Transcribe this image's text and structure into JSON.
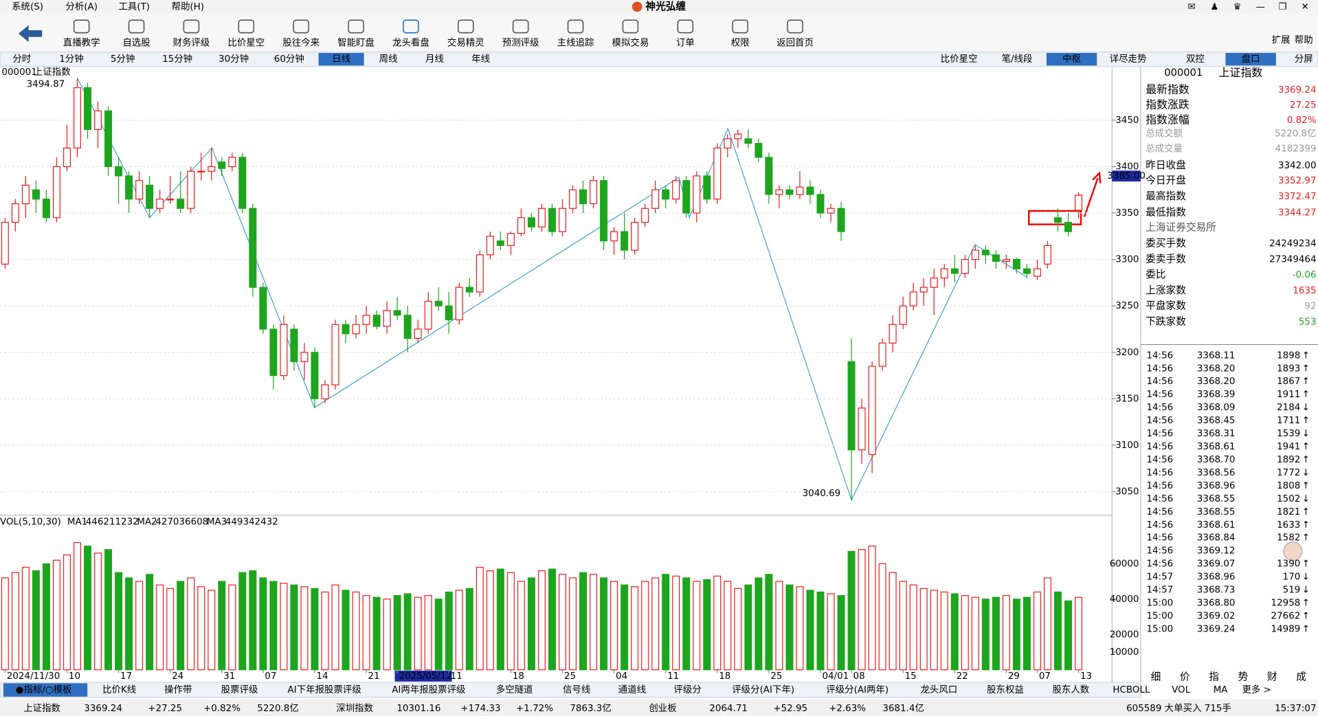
{
  "menu": [
    "系统(S)",
    "分析(A)",
    "工具(T)",
    "帮助(H)"
  ],
  "app_title": "神光弘缠",
  "toolbar": {
    "items": [
      "直播教学",
      "自选股",
      "财务评级",
      "比价星空",
      "股往今来",
      "智能盯盘",
      "龙头看盘",
      "交易精灵",
      "预测评级",
      "主线追踪",
      "模拟交易",
      "订单",
      "权限",
      "返回首页"
    ],
    "active": 6,
    "right": [
      "扩展",
      "帮助"
    ]
  },
  "period_tabs": {
    "items": [
      "分时",
      "1分钟",
      "5分钟",
      "15分钟",
      "30分钟",
      "60分钟",
      "日线",
      "周线",
      "月线",
      "年线"
    ],
    "active": 6
  },
  "view_tabs": {
    "items": [
      "比价星空",
      "笔/线段",
      "中枢",
      "详尽走势",
      "双控",
      "盘口",
      "分屏"
    ],
    "active": [
      2,
      5
    ]
  },
  "chart_data": {
    "type": "candlestick",
    "code": "000001",
    "name": "上证指数",
    "ylim": [
      3025.6,
      3507
    ],
    "yticks": [
      3050,
      3100,
      3150,
      3200,
      3250,
      3300,
      3350,
      3400,
      3450
    ],
    "up_color": "#ee1c1c",
    "down_color": "#1ea51e",
    "high_label": "3494.87",
    "low_label": "3040.69",
    "price_tag": "3385.00",
    "categories": [
      "2024/11/30",
      null,
      null,
      null,
      null,
      null,
      "10",
      null,
      null,
      null,
      null,
      "17",
      null,
      null,
      null,
      null,
      "24",
      null,
      null,
      null,
      null,
      "31",
      null,
      null,
      null,
      "07",
      null,
      null,
      null,
      null,
      "14",
      null,
      null,
      null,
      null,
      "21",
      null,
      null,
      "2025/05/12",
      null,
      null,
      null,
      null,
      "11",
      null,
      null,
      null,
      null,
      null,
      "18",
      null,
      null,
      null,
      null,
      "25",
      null,
      null,
      null,
      null,
      "04",
      null,
      null,
      null,
      null,
      "11",
      null,
      null,
      null,
      null,
      "18",
      null,
      null,
      null,
      null,
      "25",
      null,
      null,
      null,
      null,
      "04/01",
      null,
      null,
      "08",
      null,
      null,
      null,
      null,
      "15",
      null,
      null,
      null,
      null,
      "22",
      null,
      null,
      null,
      null,
      "29",
      null,
      null,
      "07",
      null,
      null,
      null,
      "13"
    ],
    "candles": [
      [
        3295,
        3345,
        3290,
        3340
      ],
      [
        3340,
        3365,
        3330,
        3360
      ],
      [
        3360,
        3390,
        3345,
        3380
      ],
      [
        3375,
        3385,
        3350,
        3365
      ],
      [
        3365,
        3375,
        3340,
        3345
      ],
      [
        3345,
        3410,
        3340,
        3400
      ],
      [
        3400,
        3445,
        3395,
        3420
      ],
      [
        3420,
        3494.87,
        3410,
        3485
      ],
      [
        3485,
        3490,
        3430,
        3440
      ],
      [
        3440,
        3470,
        3420,
        3460
      ],
      [
        3460,
        3465,
        3390,
        3400
      ],
      [
        3400,
        3410,
        3360,
        3390
      ],
      [
        3390,
        3395,
        3350,
        3365
      ],
      [
        3365,
        3395,
        3360,
        3385
      ],
      [
        3380,
        3390,
        3345,
        3355
      ],
      [
        3355,
        3375,
        3350,
        3365
      ],
      [
        3365,
        3390,
        3360,
        3365
      ],
      [
        3365,
        3395,
        3350,
        3355
      ],
      [
        3355,
        3400,
        3350,
        3395
      ],
      [
        3395,
        3415,
        3385,
        3395
      ],
      [
        3395,
        3420,
        3385,
        3400
      ],
      [
        3405,
        3410,
        3390,
        3398
      ],
      [
        3400,
        3415,
        3395,
        3410
      ],
      [
        3410,
        3415,
        3350,
        3355
      ],
      [
        3355,
        3360,
        3260,
        3270
      ],
      [
        3270,
        3275,
        3220,
        3225
      ],
      [
        3225,
        3230,
        3160,
        3175
      ],
      [
        3175,
        3240,
        3170,
        3230
      ],
      [
        3225,
        3230,
        3180,
        3190
      ],
      [
        3190,
        3210,
        3170,
        3200
      ],
      [
        3200,
        3205,
        3140,
        3150
      ],
      [
        3150,
        3170,
        3145,
        3165
      ],
      [
        3165,
        3235,
        3160,
        3230
      ],
      [
        3230,
        3235,
        3210,
        3220
      ],
      [
        3220,
        3240,
        3215,
        3230
      ],
      [
        3230,
        3250,
        3220,
        3240
      ],
      [
        3240,
        3245,
        3225,
        3228
      ],
      [
        3228,
        3255,
        3220,
        3245
      ],
      [
        3245,
        3260,
        3235,
        3240
      ],
      [
        3240,
        3250,
        3200,
        3215
      ],
      [
        3215,
        3235,
        3210,
        3225
      ],
      [
        3225,
        3265,
        3220,
        3255
      ],
      [
        3255,
        3270,
        3245,
        3250
      ],
      [
        3250,
        3265,
        3220,
        3235
      ],
      [
        3235,
        3275,
        3230,
        3270
      ],
      [
        3270,
        3280,
        3260,
        3265
      ],
      [
        3265,
        3310,
        3260,
        3305
      ],
      [
        3305,
        3330,
        3300,
        3325
      ],
      [
        3320,
        3330,
        3310,
        3315
      ],
      [
        3315,
        3330,
        3305,
        3328
      ],
      [
        3328,
        3355,
        3325,
        3345
      ],
      [
        3345,
        3350,
        3330,
        3335
      ],
      [
        3335,
        3360,
        3330,
        3355
      ],
      [
        3355,
        3360,
        3325,
        3330
      ],
      [
        3330,
        3365,
        3325,
        3355
      ],
      [
        3355,
        3380,
        3350,
        3375
      ],
      [
        3375,
        3385,
        3350,
        3360
      ],
      [
        3360,
        3390,
        3355,
        3385
      ],
      [
        3385,
        3390,
        3310,
        3320
      ],
      [
        3320,
        3335,
        3305,
        3330
      ],
      [
        3330,
        3350,
        3300,
        3310
      ],
      [
        3310,
        3345,
        3305,
        3340
      ],
      [
        3340,
        3360,
        3335,
        3355
      ],
      [
        3355,
        3385,
        3350,
        3375
      ],
      [
        3375,
        3380,
        3355,
        3365
      ],
      [
        3365,
        3390,
        3360,
        3385
      ],
      [
        3385,
        3390,
        3345,
        3350
      ],
      [
        3350,
        3395,
        3340,
        3390
      ],
      [
        3390,
        3395,
        3360,
        3365
      ],
      [
        3365,
        3425,
        3360,
        3420
      ],
      [
        3420,
        3435,
        3410,
        3430
      ],
      [
        3430,
        3440,
        3420,
        3435
      ],
      [
        3430,
        3440,
        3420,
        3425
      ],
      [
        3425,
        3430,
        3405,
        3410
      ],
      [
        3410,
        3415,
        3360,
        3370
      ],
      [
        3370,
        3380,
        3355,
        3375
      ],
      [
        3375,
        3380,
        3365,
        3370
      ],
      [
        3370,
        3395,
        3365,
        3378
      ],
      [
        3378,
        3385,
        3360,
        3370
      ],
      [
        3370,
        3375,
        3345,
        3350
      ],
      [
        3350,
        3360,
        3340,
        3355
      ],
      [
        3355,
        3362,
        3320,
        3330
      ],
      [
        3190,
        3215,
        3040.69,
        3095
      ],
      [
        3095,
        3150,
        3080,
        3140
      ],
      [
        3090,
        3190,
        3070,
        3185
      ],
      [
        3185,
        3215,
        3180,
        3210
      ],
      [
        3210,
        3240,
        3200,
        3230
      ],
      [
        3230,
        3260,
        3225,
        3250
      ],
      [
        3250,
        3275,
        3245,
        3265
      ],
      [
        3265,
        3280,
        3250,
        3270
      ],
      [
        3270,
        3290,
        3240,
        3280
      ],
      [
        3280,
        3295,
        3270,
        3290
      ],
      [
        3290,
        3305,
        3275,
        3285
      ],
      [
        3285,
        3305,
        3280,
        3300
      ],
      [
        3300,
        3315,
        3290,
        3310
      ],
      [
        3310,
        3315,
        3295,
        3305
      ],
      [
        3305,
        3310,
        3290,
        3298
      ],
      [
        3298,
        3305,
        3290,
        3300
      ],
      [
        3300,
        3302,
        3285,
        3290
      ],
      [
        3290,
        3295,
        3280,
        3285
      ],
      [
        3282,
        3300,
        3278,
        3290
      ],
      [
        3295,
        3320,
        3290,
        3315
      ],
      [
        3345,
        3355,
        3330,
        3340
      ],
      [
        3340,
        3350,
        3325,
        3330
      ],
      [
        3352.97,
        3372.47,
        3344.27,
        3369.24
      ]
    ]
  },
  "volume": {
    "type": "bar",
    "title": "VOL(5,10,30)",
    "ylim": [
      0,
      87000
    ],
    "yticks": [
      10000,
      20000,
      40000,
      60000
    ],
    "ma": [
      {
        "name": "MA1",
        "value": 446211232,
        "color": "#ee1c1c"
      },
      {
        "name": "MA2",
        "value": 427036608,
        "color": "#1c1ccc"
      },
      {
        "name": "MA3",
        "value": 449342432,
        "color": "#888888"
      }
    ],
    "values": [
      52000,
      55000,
      58000,
      56000,
      60000,
      62000,
      65000,
      72000,
      70000,
      66000,
      68000,
      55000,
      52000,
      50000,
      54000,
      48000,
      46000,
      50000,
      52000,
      47000,
      45000,
      50000,
      48000,
      55000,
      56000,
      52000,
      50000,
      49000,
      48000,
      47000,
      46000,
      44000,
      48000,
      45000,
      44000,
      42000,
      41000,
      40000,
      42000,
      43000,
      41000,
      42000,
      40000,
      44000,
      45000,
      46000,
      58000,
      56000,
      57000,
      55000,
      50000,
      52000,
      56000,
      57000,
      54000,
      52000,
      55000,
      54000,
      52000,
      50000,
      48000,
      47000,
      50000,
      52000,
      54000,
      53000,
      52000,
      50000,
      51000,
      53000,
      50000,
      46000,
      48000,
      52000,
      54000,
      50000,
      48000,
      47000,
      45000,
      44000,
      43000,
      42000,
      67000,
      68000,
      70000,
      60000,
      55000,
      50000,
      48000,
      46000,
      45000,
      44000,
      43000,
      42000,
      41000,
      40000,
      41000,
      42000,
      40000,
      41000,
      44000,
      52000,
      44000,
      39000,
      41000
    ]
  },
  "quote": {
    "code": "000001",
    "name": "上证指数",
    "rows": [
      {
        "label": "最新指数",
        "value": "3369.24",
        "color": "#ee1c1c"
      },
      {
        "label": "指数涨跌",
        "value": "27.25",
        "color": "#ee1c1c"
      },
      {
        "label": "指数涨幅",
        "value": "0.82%",
        "color": "#ee1c1c"
      },
      {
        "label": "总成交额",
        "value": "5220.8亿",
        "color": "#999999"
      },
      {
        "label": "总成交量",
        "value": "4182399",
        "color": "#999999"
      },
      {
        "label": "昨日收盘",
        "value": "3342.00",
        "color": "#000000"
      },
      {
        "label": "今日开盘",
        "value": "3352.97",
        "color": "#ee1c1c"
      },
      {
        "label": "最高指数",
        "value": "3372.47",
        "color": "#ee1c1c"
      },
      {
        "label": "最低指数",
        "value": "3344.27",
        "color": "#ee1c1c"
      }
    ],
    "exchange": "上海证券交易所",
    "rows2": [
      {
        "label": "委买手数",
        "value": "24249234",
        "color": "#000000"
      },
      {
        "label": "委卖手数",
        "value": "27349464",
        "color": "#000000"
      },
      {
        "label": "委比",
        "value": "-0.06",
        "color": "#1ea51e"
      },
      {
        "label": "上涨家数",
        "value": "1635",
        "color": "#ee1c1c"
      },
      {
        "label": "平盘家数",
        "value": "92",
        "color": "#999999"
      },
      {
        "label": "下跌家数",
        "value": "553",
        "color": "#1ea51e"
      }
    ]
  },
  "ticks": [
    {
      "time": "14:56",
      "price": "3368.11",
      "volume": "1898",
      "dir": "↑"
    },
    {
      "time": "14:56",
      "price": "3368.20",
      "volume": "1893",
      "dir": "↑"
    },
    {
      "time": "14:56",
      "price": "3368.20",
      "volume": "1867",
      "dir": "↑"
    },
    {
      "time": "14:56",
      "price": "3368.39",
      "volume": "1911",
      "dir": "↑"
    },
    {
      "time": "14:56",
      "price": "3368.09",
      "volume": "2184",
      "dir": "↓"
    },
    {
      "time": "14:56",
      "price": "3368.45",
      "volume": "1711",
      "dir": "↑"
    },
    {
      "time": "14:56",
      "price": "3368.31",
      "volume": "1539",
      "dir": "↓"
    },
    {
      "time": "14:56",
      "price": "3368.61",
      "volume": "1941",
      "dir": "↑"
    },
    {
      "time": "14:56",
      "price": "3368.70",
      "volume": "1892",
      "dir": "↑"
    },
    {
      "time": "14:56",
      "price": "3368.56",
      "volume": "1772",
      "dir": "↓"
    },
    {
      "time": "14:56",
      "price": "3368.96",
      "volume": "1808",
      "dir": "↑"
    },
    {
      "time": "14:56",
      "price": "3368.55",
      "volume": "1502",
      "dir": "↓"
    },
    {
      "time": "14:56",
      "price": "3368.55",
      "volume": "1821",
      "dir": "↑"
    },
    {
      "time": "14:56",
      "price": "3368.61",
      "volume": "1633",
      "dir": "↑"
    },
    {
      "time": "14:56",
      "price": "3368.84",
      "volume": "1582",
      "dir": "↑"
    },
    {
      "time": "14:56",
      "price": "3369.12",
      "volume": null,
      "dir": null
    },
    {
      "time": "14:56",
      "price": "3369.07",
      "volume": "1390",
      "dir": "↑"
    },
    {
      "time": "14:57",
      "price": "3368.96",
      "volume": "170",
      "dir": "↓"
    },
    {
      "time": "14:57",
      "price": "3368.73",
      "volume": "519",
      "dir": "↓"
    },
    {
      "time": "15:00",
      "price": "3368.80",
      "volume": "12958",
      "dir": "↑"
    },
    {
      "time": "15:00",
      "price": "3369.02",
      "volume": "27662",
      "dir": "↑"
    },
    {
      "time": "15:00",
      "price": "3369.24",
      "volume": "14989",
      "dir": "↑"
    }
  ],
  "bottom_tabs": {
    "items": [
      "●指标/○模板",
      "比价K线",
      "操作带",
      "股票评级",
      "AI下年报股票评级",
      "AI两年报股票评级",
      "多空隧道",
      "信号线",
      "通道线",
      "评级分",
      "评级分(AI下年)",
      "评级分(AI两年)",
      "龙头风口",
      "股东权益",
      "股东人数",
      "HCBOLL",
      "VOL",
      "MA",
      "更多 >"
    ],
    "active": 0
  },
  "side_tabs": [
    "细",
    "价",
    "指",
    "势",
    "财",
    "成"
  ],
  "status": [
    {
      "name": "上证指数",
      "price": "3369.24",
      "change": "+27.25",
      "pct": "+0.82%",
      "amount": "5220.8亿"
    },
    {
      "name": "深圳指数",
      "price": "10301.16",
      "change": "+174.33",
      "pct": "+1.72%",
      "amount": "7863.3亿"
    },
    {
      "name": "创业板",
      "price": "2064.71",
      "change": "+52.95",
      "pct": "+2.63%",
      "amount": "3681.4亿"
    }
  ],
  "status_extra": "605589 大单买入 715手",
  "clock": "15:37:07"
}
